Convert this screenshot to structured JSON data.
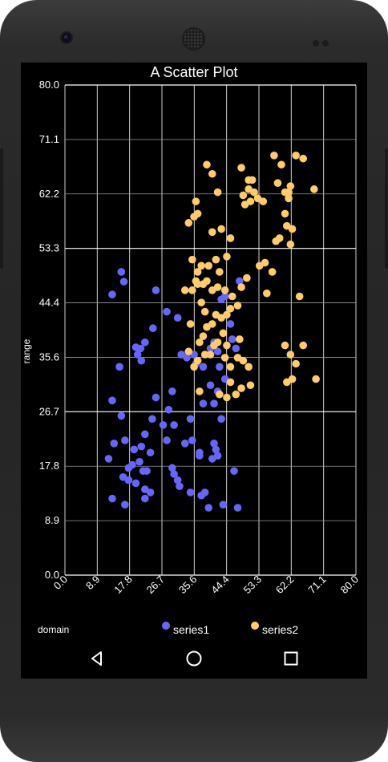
{
  "chart_data": {
    "type": "scatter",
    "title": "A Scatter Plot",
    "xlabel": "domain",
    "ylabel": "range",
    "xlim": [
      0,
      80
    ],
    "ylim": [
      0,
      80
    ],
    "xticks": [
      "0.0",
      "8.9",
      "17.8",
      "26.7",
      "35.6",
      "44.4",
      "53.3",
      "62.2",
      "71.1",
      "80.0"
    ],
    "yticks": [
      "0.0",
      "8.9",
      "17.8",
      "26.7",
      "35.6",
      "44.4",
      "53.3",
      "62.2",
      "71.1",
      "80.0"
    ],
    "grid": true,
    "legend_position": "bottom",
    "series": [
      {
        "name": "series1",
        "color": "#6666ff",
        "points": [
          [
            15.5,
            49.5
          ],
          [
            16.2,
            47.9
          ],
          [
            13.0,
            45.8
          ],
          [
            19.5,
            37.2
          ],
          [
            20.8,
            37.0
          ],
          [
            21.0,
            35.0
          ],
          [
            20.0,
            36.0
          ],
          [
            22.0,
            38.0
          ],
          [
            24.2,
            40.3
          ],
          [
            25.0,
            46.5
          ],
          [
            28.0,
            43.0
          ],
          [
            31.0,
            42.0
          ],
          [
            32.0,
            36.0
          ],
          [
            33.5,
            35.5
          ],
          [
            35.5,
            36.0
          ],
          [
            36.0,
            34.5
          ],
          [
            38.0,
            34.0
          ],
          [
            40.0,
            37.0
          ],
          [
            41.0,
            38.0
          ],
          [
            42.0,
            36.5
          ],
          [
            42.5,
            34.0
          ],
          [
            43.0,
            45.0
          ],
          [
            44.0,
            45.5
          ],
          [
            45.5,
            41.0
          ],
          [
            47.0,
            37.0
          ],
          [
            48.0,
            48.0
          ],
          [
            46.0,
            38.5
          ],
          [
            44.0,
            32.0
          ],
          [
            42.0,
            30.0
          ],
          [
            40.0,
            31.0
          ],
          [
            43.0,
            25.5
          ],
          [
            41.0,
            28.0
          ],
          [
            38.0,
            28.0
          ],
          [
            34.5,
            25.5
          ],
          [
            30.0,
            24.5
          ],
          [
            28.0,
            22.0
          ],
          [
            27.0,
            24.5
          ],
          [
            24.0,
            25.5
          ],
          [
            22.0,
            23.0
          ],
          [
            23.5,
            20.0
          ],
          [
            21.0,
            21.0
          ],
          [
            19.0,
            20.5
          ],
          [
            16.5,
            22.0
          ],
          [
            15.5,
            26.0
          ],
          [
            13.0,
            28.5
          ],
          [
            15.0,
            34.0
          ],
          [
            12.0,
            19.0
          ],
          [
            13.5,
            21.5
          ],
          [
            17.5,
            17.5
          ],
          [
            18.5,
            18.0
          ],
          [
            20.5,
            18.5
          ],
          [
            21.5,
            17.0
          ],
          [
            22.5,
            17.0
          ],
          [
            16.0,
            16.0
          ],
          [
            17.5,
            15.5
          ],
          [
            19.5,
            15.0
          ],
          [
            22.0,
            14.0
          ],
          [
            23.5,
            13.5
          ],
          [
            13.0,
            12.5
          ],
          [
            16.5,
            11.5
          ],
          [
            22.0,
            12.5
          ],
          [
            29.5,
            17.5
          ],
          [
            30.0,
            16.5
          ],
          [
            31.0,
            15.5
          ],
          [
            31.5,
            14.5
          ],
          [
            33.0,
            21.5
          ],
          [
            35.0,
            22.0
          ],
          [
            37.0,
            20.0
          ],
          [
            40.5,
            19.0
          ],
          [
            42.0,
            19.5
          ],
          [
            41.5,
            20.5
          ],
          [
            41.0,
            21.5
          ],
          [
            37.0,
            19.5
          ],
          [
            37.5,
            13.0
          ],
          [
            38.5,
            13.5
          ],
          [
            39.5,
            11.0
          ],
          [
            43.5,
            11.5
          ],
          [
            46.5,
            17.0
          ],
          [
            47.5,
            11.0
          ],
          [
            34.5,
            13.5
          ],
          [
            29.5,
            30.0
          ],
          [
            28.5,
            27.0
          ],
          [
            25.0,
            29.0
          ]
        ]
      },
      {
        "name": "series2",
        "color": "#ffcc66",
        "points": [
          [
            39.0,
            67.0
          ],
          [
            40.5,
            65.5
          ],
          [
            42.0,
            62.5
          ],
          [
            36.0,
            61.0
          ],
          [
            35.5,
            58.5
          ],
          [
            34.0,
            57.5
          ],
          [
            36.5,
            59.0
          ],
          [
            40.5,
            56.0
          ],
          [
            43.0,
            56.5
          ],
          [
            45.5,
            55.0
          ],
          [
            48.5,
            66.5
          ],
          [
            49.0,
            62.0
          ],
          [
            49.5,
            60.5
          ],
          [
            50.5,
            64.5
          ],
          [
            51.5,
            64.5
          ],
          [
            51.0,
            61.0
          ],
          [
            50.5,
            63.0
          ],
          [
            53.0,
            61.5
          ],
          [
            54.5,
            61.0
          ],
          [
            57.5,
            68.5
          ],
          [
            58.5,
            64.0
          ],
          [
            59.5,
            67.0
          ],
          [
            60.5,
            62.5
          ],
          [
            61.5,
            62.5
          ],
          [
            62.0,
            63.5
          ],
          [
            60.5,
            59.0
          ],
          [
            61.5,
            61.5
          ],
          [
            63.5,
            68.5
          ],
          [
            65.5,
            68.0
          ],
          [
            68.5,
            63.0
          ],
          [
            62.5,
            56.5
          ],
          [
            62.0,
            54.0
          ],
          [
            61.0,
            57.0
          ],
          [
            58.0,
            54.5
          ],
          [
            59.0,
            55.0
          ],
          [
            52.0,
            62.5
          ],
          [
            53.5,
            50.5
          ],
          [
            55.0,
            51.0
          ],
          [
            57.0,
            49.5
          ],
          [
            55.5,
            46.0
          ],
          [
            50.0,
            48.5
          ],
          [
            48.5,
            47.0
          ],
          [
            44.5,
            52.0
          ],
          [
            42.5,
            49.5
          ],
          [
            41.5,
            51.5
          ],
          [
            39.5,
            50.5
          ],
          [
            37.5,
            50.5
          ],
          [
            36.5,
            49.5
          ],
          [
            36.0,
            48.0
          ],
          [
            35.0,
            46.5
          ],
          [
            33.0,
            46.5
          ],
          [
            35.0,
            51.5
          ],
          [
            36.5,
            47.5
          ],
          [
            38.0,
            47.5
          ],
          [
            39.0,
            48.0
          ],
          [
            40.5,
            46.5
          ],
          [
            42.0,
            47.0
          ],
          [
            44.0,
            46.5
          ],
          [
            46.0,
            45.5
          ],
          [
            47.5,
            44.0
          ],
          [
            45.5,
            43.5
          ],
          [
            44.5,
            42.5
          ],
          [
            43.0,
            42.0
          ],
          [
            41.5,
            42.5
          ],
          [
            40.5,
            41.0
          ],
          [
            39.0,
            40.5
          ],
          [
            38.5,
            43.0
          ],
          [
            37.5,
            44.5
          ],
          [
            38.0,
            39.0
          ],
          [
            37.0,
            38.0
          ],
          [
            36.5,
            35.0
          ],
          [
            38.5,
            36.0
          ],
          [
            40.0,
            36.0
          ],
          [
            41.0,
            37.5
          ],
          [
            42.0,
            38.0
          ],
          [
            43.5,
            39.5
          ],
          [
            44.5,
            37.5
          ],
          [
            44.0,
            35.5
          ],
          [
            45.5,
            34.0
          ],
          [
            47.5,
            35.5
          ],
          [
            48.0,
            38.5
          ],
          [
            49.0,
            35.0
          ],
          [
            50.5,
            34.0
          ],
          [
            51.0,
            31.0
          ],
          [
            48.5,
            30.5
          ],
          [
            47.0,
            29.5
          ],
          [
            45.5,
            31.5
          ],
          [
            44.5,
            29.0
          ],
          [
            42.5,
            29.5
          ],
          [
            34.0,
            36.5
          ],
          [
            35.5,
            34.0
          ],
          [
            37.0,
            30.0
          ],
          [
            60.5,
            37.5
          ],
          [
            62.0,
            36.0
          ],
          [
            63.5,
            34.5
          ],
          [
            65.5,
            37.5
          ],
          [
            61.0,
            31.5
          ],
          [
            62.5,
            32.0
          ],
          [
            69.0,
            32.0
          ],
          [
            64.5,
            45.5
          ],
          [
            34.5,
            41.0
          ]
        ]
      }
    ]
  }
}
